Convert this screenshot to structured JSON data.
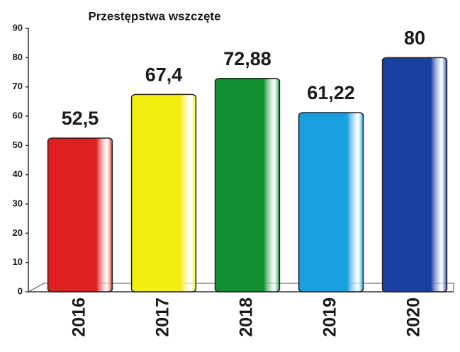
{
  "chart_data": {
    "type": "bar",
    "title": "Przestępstwa wszczęte",
    "categories": [
      "2016",
      "2017",
      "2018",
      "2019",
      "2020"
    ],
    "values": [
      52.5,
      67.4,
      72.88,
      61.22,
      80
    ],
    "value_labels": [
      "52,5",
      "67,4",
      "72,88",
      "61,22",
      "80"
    ],
    "colors": [
      "#e02020",
      "#f2ee10",
      "#109030",
      "#18a0e0",
      "#1840a0"
    ],
    "ylim": [
      0,
      90
    ],
    "yticks": [
      0,
      10,
      20,
      30,
      40,
      50,
      60,
      70,
      80,
      90
    ]
  }
}
